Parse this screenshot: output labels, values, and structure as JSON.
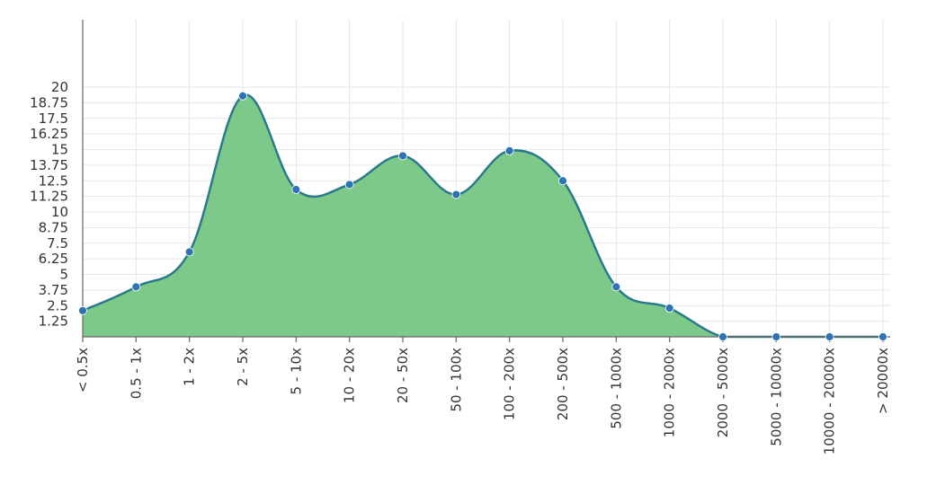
{
  "chart_data": {
    "type": "area",
    "categories": [
      "< 0.5x",
      "0.5 - 1x",
      "1 - 2x",
      "2 - 5x",
      "5 - 10x",
      "10 - 20x",
      "20 - 50x",
      "50 - 100x",
      "100 - 200x",
      "200 - 500x",
      "500 - 1000x",
      "1000 - 2000x",
      "2000 - 5000x",
      "5000 - 10000x",
      "10000 - 20000x",
      "> 20000x"
    ],
    "values": [
      2.1,
      4.0,
      6.8,
      19.3,
      11.8,
      12.2,
      14.5,
      11.4,
      14.9,
      12.5,
      4.0,
      2.3,
      0,
      0,
      0,
      0
    ],
    "yticks": [
      "1.25",
      "2.5",
      "3.75",
      "5",
      "6.25",
      "7.5",
      "8.75",
      "10",
      "11.25",
      "12.5",
      "13.75",
      "15",
      "16.25",
      "17.5",
      "18.75",
      "20"
    ],
    "ylim": [
      0,
      25
    ],
    "grid": true,
    "colors": {
      "area_fill": "#7dc98a",
      "line": "#2b7a8c",
      "marker": "#2f73b5"
    }
  }
}
